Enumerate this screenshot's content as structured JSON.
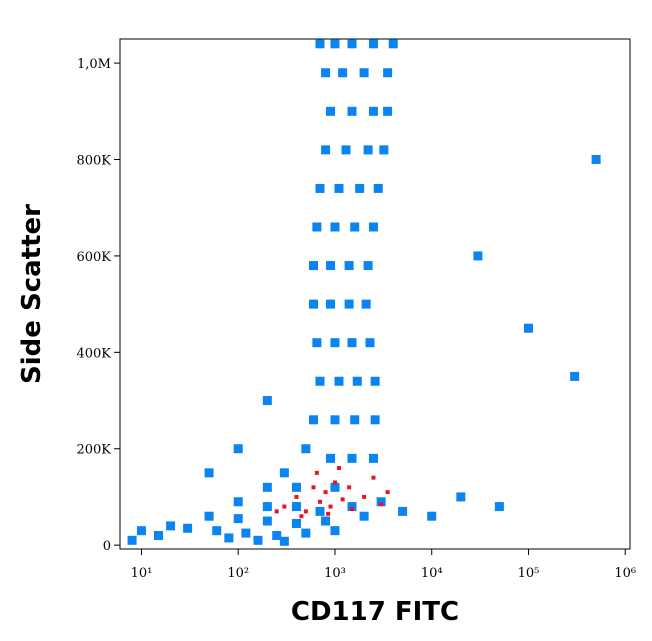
{
  "chart_data": {
    "type": "scatter",
    "x_label": "CD117 FITC",
    "y_label": "Side Scatter",
    "xscale": "log",
    "xlim": [
      6,
      1120000
    ],
    "ylim": [
      -8000,
      1050000
    ],
    "xticks": [
      {
        "value": 10,
        "label": "10¹"
      },
      {
        "value": 100,
        "label": "10²"
      },
      {
        "value": 1000,
        "label": "10³"
      },
      {
        "value": 10000,
        "label": "10⁴"
      },
      {
        "value": 100000,
        "label": "10⁵"
      },
      {
        "value": 1000000,
        "label": "10⁶"
      }
    ],
    "yticks": [
      0,
      {
        "value": 200000,
        "label": "200K"
      },
      {
        "value": 400000,
        "label": "400K"
      },
      {
        "value": 600000,
        "label": "600K"
      },
      {
        "value": 800000,
        "label": "800K"
      },
      {
        "value": 1000000,
        "label": "1,0M"
      }
    ],
    "series": [
      {
        "color": "#0a84f0",
        "x": [
          700,
          1000,
          1500,
          2500,
          4000,
          800,
          1200,
          2000,
          3500,
          900,
          1500,
          2500,
          3500,
          800,
          1300,
          2200,
          3200,
          700,
          1100,
          1800,
          2800,
          650,
          1000,
          1600,
          2500,
          600,
          900,
          1400,
          2200,
          600,
          900,
          1400,
          2100,
          650,
          1000,
          1500,
          2300,
          700,
          1100,
          1700,
          2600,
          600,
          1000,
          1600,
          2600,
          500,
          900,
          1500,
          2500,
          300,
          200,
          400,
          1000,
          100,
          200,
          400,
          700,
          1500,
          3000,
          50,
          100,
          200,
          400,
          800,
          2000,
          5000,
          20,
          30,
          60,
          120,
          250,
          500,
          1000,
          10,
          15,
          80,
          160,
          300,
          8,
          200,
          100,
          50,
          20000,
          10000,
          50000,
          300000,
          500000,
          100000,
          30000
        ],
        "y": [
          1040000,
          1040000,
          1040000,
          1040000,
          1040000,
          980000,
          980000,
          980000,
          980000,
          900000,
          900000,
          900000,
          900000,
          820000,
          820000,
          820000,
          820000,
          740000,
          740000,
          740000,
          740000,
          660000,
          660000,
          660000,
          660000,
          580000,
          580000,
          580000,
          580000,
          500000,
          500000,
          500000,
          500000,
          420000,
          420000,
          420000,
          420000,
          340000,
          340000,
          340000,
          340000,
          260000,
          260000,
          260000,
          260000,
          200000,
          180000,
          180000,
          180000,
          150000,
          120000,
          120000,
          120000,
          90000,
          80000,
          80000,
          70000,
          80000,
          90000,
          60000,
          55000,
          50000,
          45000,
          50000,
          60000,
          70000,
          40000,
          35000,
          30000,
          25000,
          20000,
          25000,
          30000,
          30000,
          20000,
          15000,
          10000,
          8000,
          10000,
          300000,
          200000,
          150000,
          100000,
          60000,
          80000,
          350000,
          800000,
          450000,
          600000
        ]
      },
      {
        "color": "#e8141e",
        "x": [
          300,
          400,
          500,
          600,
          700,
          800,
          900,
          1000,
          1200,
          1500,
          2000,
          2500,
          3000,
          450,
          650,
          850,
          1100,
          1400,
          250,
          3500
        ],
        "y": [
          80000,
          100000,
          70000,
          120000,
          90000,
          110000,
          80000,
          130000,
          95000,
          75000,
          100000,
          140000,
          85000,
          60000,
          150000,
          65000,
          160000,
          120000,
          70000,
          110000
        ]
      }
    ]
  }
}
